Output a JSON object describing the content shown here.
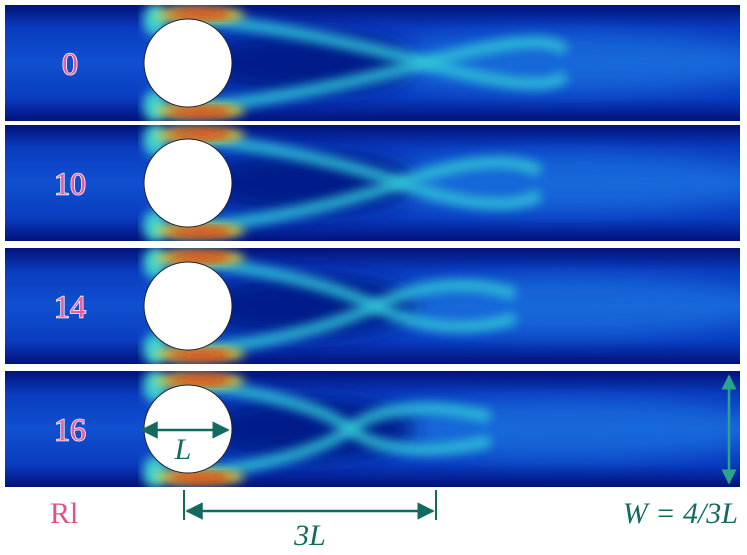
{
  "panels": [
    {
      "label": "0"
    },
    {
      "label": "10"
    },
    {
      "label": "14"
    },
    {
      "label": "16"
    }
  ],
  "annotations": {
    "rl": "Rl",
    "l": "L",
    "three_l": "3L",
    "w": "W = 4/3L"
  }
}
